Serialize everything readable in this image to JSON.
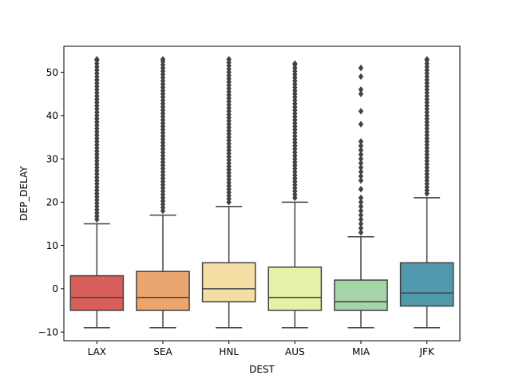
{
  "chart_data": {
    "type": "box",
    "xlabel": "DEST",
    "ylabel": "DEP_DELAY",
    "ylim": [
      -12,
      56
    ],
    "yticks": [
      -10,
      0,
      10,
      20,
      30,
      40,
      50
    ],
    "categories": [
      "LAX",
      "SEA",
      "HNL",
      "AUS",
      "MIA",
      "JFK"
    ],
    "boxes": [
      {
        "category": "LAX",
        "color": "#d95f5b",
        "whisker_low": -9,
        "q1": -5,
        "median": -2,
        "q3": 3,
        "whisker_high": 15,
        "outlier_range": [
          16,
          53
        ]
      },
      {
        "category": "SEA",
        "color": "#eba66f",
        "whisker_low": -9,
        "q1": -5,
        "median": -2,
        "q3": 4,
        "whisker_high": 17,
        "outlier_range": [
          18,
          53
        ]
      },
      {
        "category": "HNL",
        "color": "#f4dea4",
        "whisker_low": -9,
        "q1": -3,
        "median": 0,
        "q3": 6,
        "whisker_high": 19,
        "outlier_range": [
          20,
          53
        ]
      },
      {
        "category": "AUS",
        "color": "#e6f0a9",
        "whisker_low": -9,
        "q1": -5,
        "median": -2,
        "q3": 5,
        "whisker_high": 20,
        "outlier_range": [
          21,
          52
        ]
      },
      {
        "category": "MIA",
        "color": "#a5d4a8",
        "whisker_low": -9,
        "q1": -5,
        "median": -3,
        "q3": 2,
        "whisker_high": 12,
        "outliers": [
          13,
          14,
          15,
          16,
          17,
          18,
          19,
          20,
          21,
          23,
          25,
          26,
          27,
          28,
          29,
          30,
          31,
          32,
          33,
          34,
          38,
          41,
          45,
          46,
          49,
          51
        ]
      },
      {
        "category": "JFK",
        "color": "#5199ac",
        "whisker_low": -9,
        "q1": -4,
        "median": -1,
        "q3": 6,
        "whisker_high": 21,
        "outlier_range": [
          22,
          53
        ]
      }
    ],
    "grid": false,
    "legend": "none"
  }
}
